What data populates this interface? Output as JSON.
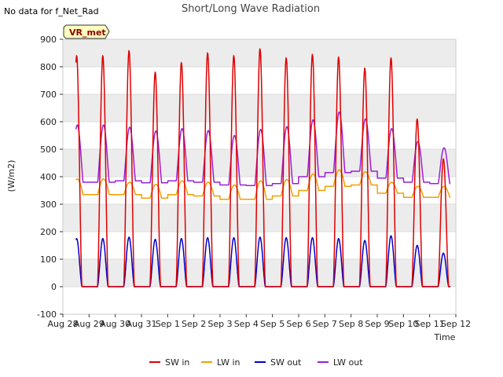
{
  "header": {
    "no_data_note": "No data for f_Net_Rad",
    "site_badge": "VR_met"
  },
  "chart_data": {
    "type": "line",
    "title": "Short/Long Wave Radiation",
    "xlabel": "Time",
    "ylabel": "(W/m2)",
    "x_ticks": [
      "Aug 28",
      "Aug 29",
      "Aug 30",
      "Aug 31",
      "Sep 1",
      "Sep 2",
      "Sep 3",
      "Sep 4",
      "Sep 5",
      "Sep 6",
      "Sep 7",
      "Sep 8",
      "Sep 9",
      "Sep 10",
      "Sep 11",
      "Sep 12"
    ],
    "xlim": [
      "Aug 28",
      "Sep 12"
    ],
    "ylim": [
      -100,
      900
    ],
    "y_ticks": [
      -100,
      0,
      100,
      200,
      300,
      400,
      500,
      600,
      700,
      800,
      900
    ],
    "grid": true,
    "legend_position": "bottom",
    "x_start_day": "Aug 28 12:00",
    "daily": [
      {
        "day": "Aug 28",
        "sw_in_peak": 840,
        "sw_out_peak": 175,
        "lw_in_night": 335,
        "lw_in_day": 392,
        "lw_out_night": 380,
        "lw_out_peak": 588
      },
      {
        "day": "Aug 29",
        "sw_in_peak": 858,
        "sw_out_peak": 180,
        "lw_in_night": 335,
        "lw_in_day": 380,
        "lw_out_night": 385,
        "lw_out_peak": 580
      },
      {
        "day": "Aug 30",
        "sw_in_peak": 780,
        "sw_out_peak": 172,
        "lw_in_night": 322,
        "lw_in_day": 372,
        "lw_out_night": 378,
        "lw_out_peak": 566
      },
      {
        "day": "Aug 31",
        "sw_in_peak": 815,
        "sw_out_peak": 175,
        "lw_in_night": 335,
        "lw_in_day": 385,
        "lw_out_night": 385,
        "lw_out_peak": 575
      },
      {
        "day": "Sep 1",
        "sw_in_peak": 850,
        "sw_out_peak": 178,
        "lw_in_night": 330,
        "lw_in_day": 380,
        "lw_out_night": 380,
        "lw_out_peak": 568
      },
      {
        "day": "Sep 2",
        "sw_in_peak": 840,
        "sw_out_peak": 178,
        "lw_in_night": 318,
        "lw_in_day": 370,
        "lw_out_night": 370,
        "lw_out_peak": 550
      },
      {
        "day": "Sep 3",
        "sw_in_peak": 865,
        "sw_out_peak": 180,
        "lw_in_night": 318,
        "lw_in_day": 385,
        "lw_out_night": 368,
        "lw_out_peak": 572
      },
      {
        "day": "Sep 4",
        "sw_in_peak": 832,
        "sw_out_peak": 178,
        "lw_in_night": 330,
        "lw_in_day": 390,
        "lw_out_night": 375,
        "lw_out_peak": 582
      },
      {
        "day": "Sep 5",
        "sw_in_peak": 845,
        "sw_out_peak": 178,
        "lw_in_night": 350,
        "lw_in_day": 410,
        "lw_out_night": 400,
        "lw_out_peak": 607
      },
      {
        "day": "Sep 6",
        "sw_in_peak": 835,
        "sw_out_peak": 175,
        "lw_in_night": 365,
        "lw_in_day": 425,
        "lw_out_night": 415,
        "lw_out_peak": 635
      },
      {
        "day": "Sep 7",
        "sw_in_peak": 795,
        "sw_out_peak": 168,
        "lw_in_night": 370,
        "lw_in_day": 418,
        "lw_out_night": 420,
        "lw_out_peak": 610
      },
      {
        "day": "Sep 8",
        "sw_in_peak": 832,
        "sw_out_peak": 185,
        "lw_in_night": 340,
        "lw_in_day": 380,
        "lw_out_night": 395,
        "lw_out_peak": 575
      },
      {
        "day": "Sep 9",
        "sw_in_peak": 610,
        "sw_out_peak": 150,
        "lw_in_night": 325,
        "lw_in_day": 365,
        "lw_out_night": 380,
        "lw_out_peak": 528
      },
      {
        "day": "Sep 10",
        "sw_in_peak": 465,
        "sw_out_peak": 122,
        "lw_in_night": 325,
        "lw_in_day": 365,
        "lw_out_night": 375,
        "lw_out_peak": 505
      }
    ],
    "series": [
      {
        "name": "SW in",
        "color": "#e00000",
        "key": "sw_in"
      },
      {
        "name": "LW in",
        "color": "#f0a000",
        "key": "lw_in"
      },
      {
        "name": "SW out",
        "color": "#0000cc",
        "key": "sw_out"
      },
      {
        "name": "LW out",
        "color": "#9a20d8",
        "key": "lw_out"
      }
    ]
  }
}
